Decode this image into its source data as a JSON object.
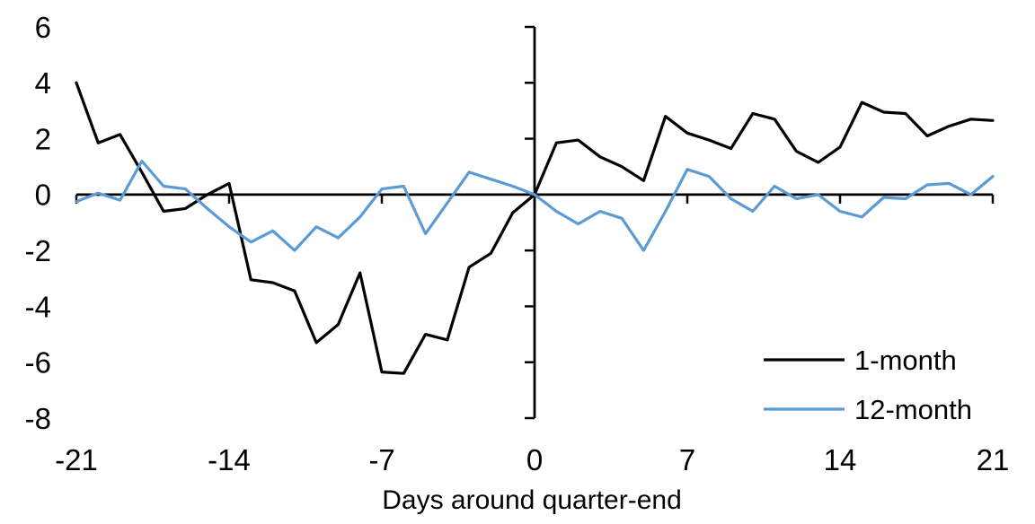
{
  "chart_data": {
    "type": "line",
    "title": "",
    "xlabel": "Days around quarter-end",
    "ylabel": "",
    "xlim": [
      -21,
      21
    ],
    "ylim": [
      -8,
      6
    ],
    "x_ticks": [
      -21,
      -14,
      -7,
      0,
      7,
      14,
      21
    ],
    "y_ticks": [
      6,
      4,
      2,
      0,
      -2,
      -4,
      -6,
      -8
    ],
    "grid": "off",
    "legend_position": "inside-bottom-right",
    "axis_cross": [
      0,
      0
    ],
    "x": [
      -21,
      -20,
      -19,
      -18,
      -17,
      -16,
      -15,
      -14,
      -13,
      -12,
      -11,
      -10,
      -9,
      -8,
      -7,
      -6,
      -5,
      -4,
      -3,
      -2,
      -1,
      0,
      1,
      2,
      3,
      4,
      5,
      6,
      7,
      8,
      9,
      10,
      11,
      12,
      13,
      14,
      15,
      16,
      17,
      18,
      19,
      20,
      21
    ],
    "series": [
      {
        "name": "1-month",
        "color": "#000000",
        "values": [
          4.0,
          1.85,
          2.15,
          0.8,
          -0.6,
          -0.5,
          0.0,
          0.4,
          -3.05,
          -3.15,
          -3.45,
          -5.3,
          -4.65,
          -2.8,
          -6.35,
          -6.4,
          -5.0,
          -5.2,
          -2.6,
          -2.1,
          -0.65,
          0.0,
          1.85,
          1.95,
          1.35,
          1.0,
          0.5,
          2.8,
          2.2,
          1.95,
          1.65,
          2.9,
          2.7,
          1.55,
          1.15,
          1.7,
          3.3,
          2.95,
          2.9,
          2.1,
          2.45,
          2.7,
          2.65
        ]
      },
      {
        "name": "12-month",
        "color": "#5B9BD5",
        "values": [
          -0.25,
          0.05,
          -0.2,
          1.2,
          0.3,
          0.2,
          -0.5,
          -1.15,
          -1.7,
          -1.3,
          -2.0,
          -1.15,
          -1.55,
          -0.8,
          0.2,
          0.3,
          -1.4,
          -0.3,
          0.8,
          0.55,
          0.3,
          0.0,
          -0.6,
          -1.05,
          -0.6,
          -0.85,
          -2.0,
          -0.6,
          0.9,
          0.65,
          -0.15,
          -0.6,
          0.3,
          -0.15,
          0.0,
          -0.6,
          -0.8,
          -0.1,
          -0.15,
          0.35,
          0.4,
          0.0,
          0.65
        ]
      }
    ]
  }
}
